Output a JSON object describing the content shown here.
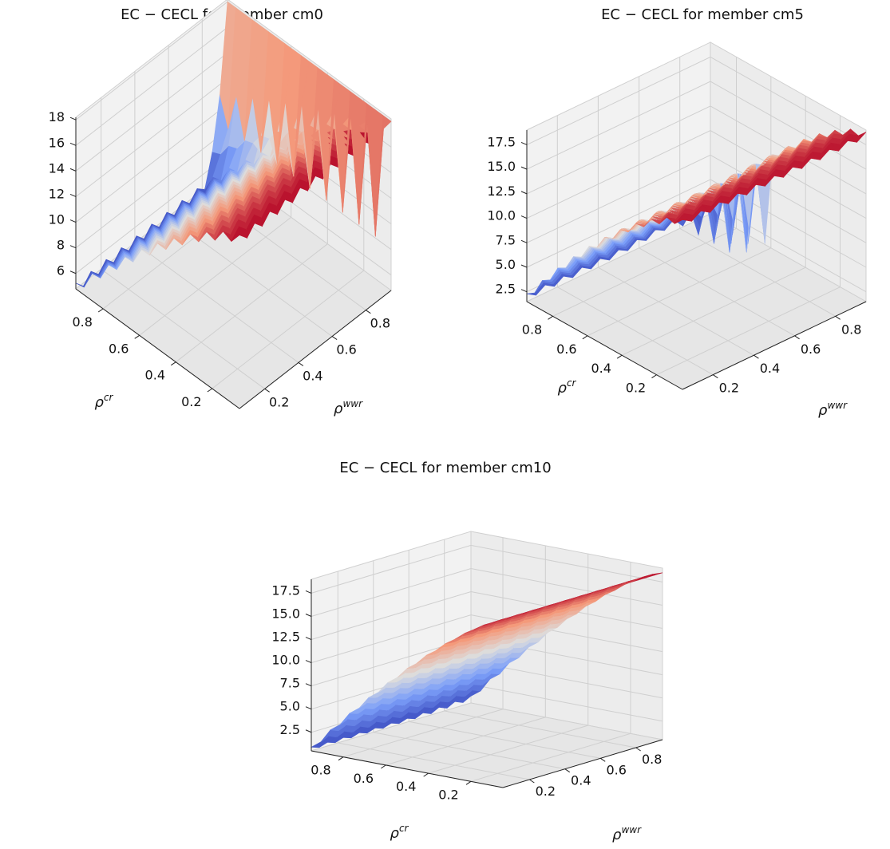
{
  "chart_data": [
    {
      "type": "surface",
      "title": "EC − CECL for member cm0",
      "xlabel": "ρ^cr",
      "ylabel": "ρ^wwr",
      "zlabel": "",
      "x_ticks": [
        "0.2",
        "0.4",
        "0.6",
        "0.8"
      ],
      "y_ticks": [
        "0.2",
        "0.4",
        "0.6",
        "0.8"
      ],
      "z_ticks": [
        "6",
        "8",
        "10",
        "12",
        "14",
        "16",
        "18"
      ],
      "xlim": [
        0.05,
        0.95
      ],
      "ylim": [
        0.05,
        0.95
      ],
      "zlim": [
        4.8,
        18.2
      ],
      "colormap": "coolwarm",
      "grid": true,
      "z_approx": {
        "max": 18,
        "at_rho_cr_0.05": 18,
        "at_rho_cr_0.95": 4.9,
        "ridge_at_rho_wwr_0.95": 18
      }
    },
    {
      "type": "surface",
      "title": "EC − CECL for member cm5",
      "xlabel": "ρ^cr",
      "ylabel": "ρ^wwr",
      "zlabel": "",
      "x_ticks": [
        "0.2",
        "0.4",
        "0.6",
        "0.8"
      ],
      "y_ticks": [
        "0.2",
        "0.4",
        "0.6",
        "0.8"
      ],
      "z_ticks": [
        "2.5",
        "5.0",
        "7.5",
        "10.0",
        "12.5",
        "15.0",
        "17.5"
      ],
      "xlim": [
        0.05,
        0.95
      ],
      "ylim": [
        0.05,
        0.95
      ],
      "zlim": [
        1.5,
        19
      ],
      "colormap": "coolwarm",
      "grid": true,
      "z_approx": {
        "max": 18.5,
        "min": 1.6
      }
    },
    {
      "type": "surface",
      "title": "EC − CECL for member cm10",
      "xlabel": "ρ^cr",
      "ylabel": "ρ^wwr",
      "zlabel": "",
      "x_ticks": [
        "0.2",
        "0.4",
        "0.6",
        "0.8"
      ],
      "y_ticks": [
        "0.2",
        "0.4",
        "0.6",
        "0.8"
      ],
      "z_ticks": [
        "2.5",
        "5.0",
        "7.5",
        "10.0",
        "12.5",
        "15.0",
        "17.5"
      ],
      "xlim": [
        0.05,
        0.95
      ],
      "ylim": [
        0.05,
        0.95
      ],
      "zlim": [
        0.5,
        19
      ],
      "colormap": "coolwarm",
      "grid": true,
      "z_approx": {
        "max": 18.5,
        "min": 0.6
      }
    }
  ]
}
